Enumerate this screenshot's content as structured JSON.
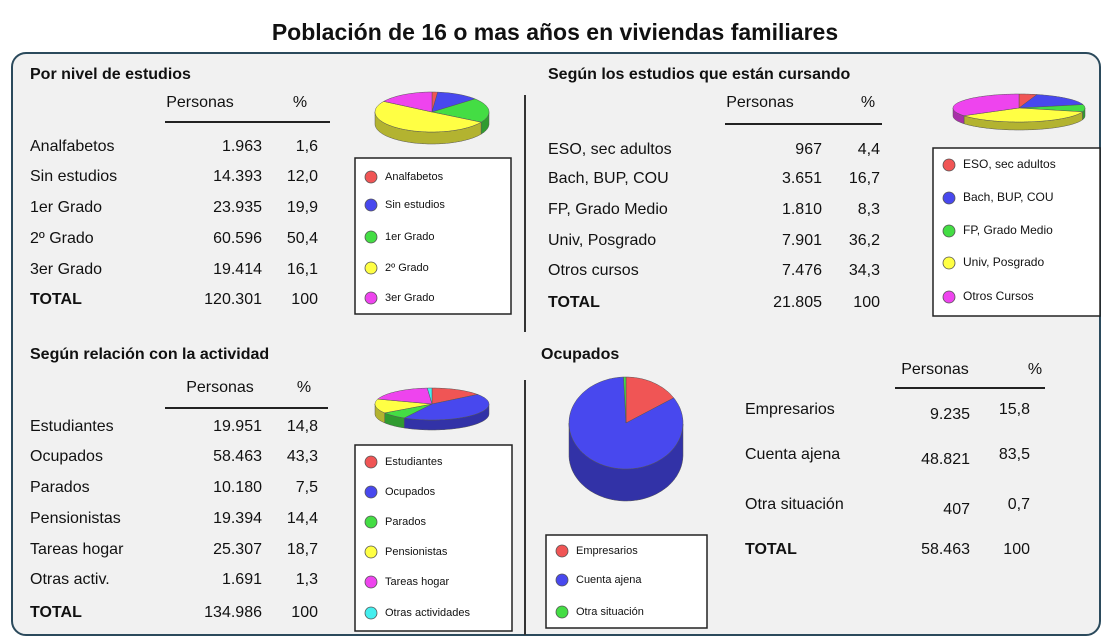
{
  "title": "Población de 16 o mas años en viviendas familiares",
  "sections": [
    {
      "heading": "Por nivel de estudios",
      "col_persons": "Personas",
      "col_pct": "%",
      "rows": [
        {
          "label": "Analfabetos",
          "persons": "1.963",
          "pct": 1.6,
          "pct_label": "1,6"
        },
        {
          "label": "Sin estudios",
          "persons": "14.393",
          "pct": 12.0,
          "pct_label": "12,0"
        },
        {
          "label": "1er Grado",
          "persons": "23.935",
          "pct": 19.9,
          "pct_label": "19,9"
        },
        {
          "label": "2º Grado",
          "persons": "60.596",
          "pct": 50.4,
          "pct_label": "50,4"
        },
        {
          "label": "3er Grado",
          "persons": "19.414",
          "pct": 16.1,
          "pct_label": "16,1"
        }
      ],
      "total": {
        "label": "TOTAL",
        "persons": "120.301",
        "pct": "100"
      },
      "legend": [
        "Analfabetos",
        "Sin estudios",
        "1er Grado",
        "2º Grado",
        "3er Grado"
      ],
      "colors": [
        "#f05555",
        "#4848ee",
        "#44dd44",
        "#ffff44",
        "#ee44ee"
      ]
    },
    {
      "heading": "Según los estudios que están cursando",
      "col_persons": "Personas",
      "col_pct": "%",
      "rows": [
        {
          "label": "ESO, sec adultos",
          "persons": "967",
          "pct": 4.4,
          "pct_label": "4,4"
        },
        {
          "label": "Bach, BUP, COU",
          "persons": "3.651",
          "pct": 16.7,
          "pct_label": "16,7"
        },
        {
          "label": "FP, Grado Medio",
          "persons": "1.810",
          "pct": 8.3,
          "pct_label": "8,3"
        },
        {
          "label": "Univ, Posgrado",
          "persons": "7.901",
          "pct": 36.2,
          "pct_label": "36,2"
        },
        {
          "label": "Otros cursos",
          "persons": "7.476",
          "pct": 34.3,
          "pct_label": "34,3"
        }
      ],
      "total": {
        "label": "TOTAL",
        "persons": "21.805",
        "pct": "100"
      },
      "legend": [
        "ESO, sec adultos",
        "Bach, BUP, COU",
        "FP, Grado Medio",
        "Univ, Posgrado",
        "Otros Cursos"
      ],
      "colors": [
        "#f05555",
        "#4848ee",
        "#44dd44",
        "#ffff44",
        "#ee44ee"
      ]
    },
    {
      "heading": "Según relación con la actividad",
      "col_persons": "Personas",
      "col_pct": "%",
      "rows": [
        {
          "label": "Estudiantes",
          "persons": "19.951",
          "pct": 14.8,
          "pct_label": "14,8"
        },
        {
          "label": "Ocupados",
          "persons": "58.463",
          "pct": 43.3,
          "pct_label": "43,3"
        },
        {
          "label": "Parados",
          "persons": "10.180",
          "pct": 7.5,
          "pct_label": "7,5"
        },
        {
          "label": "Pensionistas",
          "persons": "19.394",
          "pct": 14.4,
          "pct_label": "14,4"
        },
        {
          "label": "Tareas hogar",
          "persons": "25.307",
          "pct": 18.7,
          "pct_label": "18,7"
        },
        {
          "label": "Otras activ.",
          "persons": "1.691",
          "pct": 1.3,
          "pct_label": "1,3"
        }
      ],
      "total": {
        "label": "TOTAL",
        "persons": "134.986",
        "pct": "100"
      },
      "legend": [
        "Estudiantes",
        "Ocupados",
        "Parados",
        "Pensionistas",
        "Tareas hogar",
        "Otras actividades"
      ],
      "colors": [
        "#f05555",
        "#4848ee",
        "#44dd44",
        "#ffff44",
        "#ee44ee",
        "#44eeee"
      ]
    },
    {
      "heading": "Ocupados",
      "col_persons": "Personas",
      "col_pct": "%",
      "rows": [
        {
          "label": "Empresarios",
          "persons": "9.235",
          "pct": 15.8,
          "pct_label": "15,8"
        },
        {
          "label": "Cuenta ajena",
          "persons": "48.821",
          "pct": 83.5,
          "pct_label": "83,5"
        },
        {
          "label": "Otra situación",
          "persons": "407",
          "pct": 0.7,
          "pct_label": "0,7"
        }
      ],
      "total": {
        "label": "TOTAL",
        "persons": "58.463",
        "pct": "100"
      },
      "legend": [
        "Empresarios",
        "Cuenta ajena",
        "Otra situación"
      ],
      "colors": [
        "#f05555",
        "#4848ee",
        "#44dd44"
      ]
    }
  ]
}
